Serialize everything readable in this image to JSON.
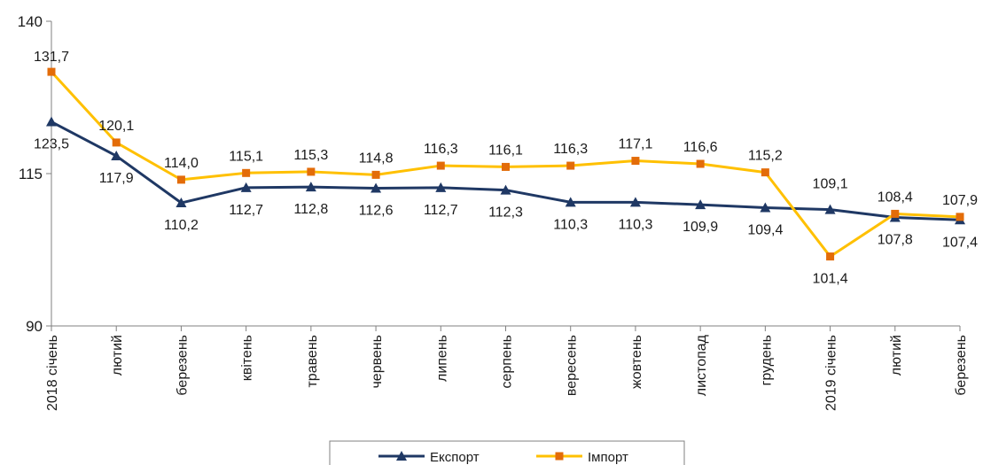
{
  "chart_data": {
    "type": "line",
    "categories": [
      "2018 січень",
      "лютий",
      "березень",
      "квітень",
      "травень",
      "червень",
      "липень",
      "серпень",
      "вересень",
      "жовтень",
      "листопад",
      "грудень",
      "2019 січень",
      "лютий",
      "березень"
    ],
    "series": [
      {
        "name": "Експорт",
        "color": "#1f3864",
        "marker": "triangle",
        "values": [
          123.5,
          117.9,
          110.2,
          112.7,
          112.8,
          112.6,
          112.7,
          112.3,
          110.3,
          110.3,
          109.9,
          109.4,
          109.1,
          107.8,
          107.4
        ],
        "labels": [
          "123,5",
          "117,9",
          "110,2",
          "112,7",
          "112,8",
          "112,6",
          "112,7",
          "112,3",
          "110,3",
          "110,3",
          "109,9",
          "109,4",
          "109,1",
          "107,8",
          "107,4"
        ]
      },
      {
        "name": "Імпорт",
        "color": "#ffc000",
        "marker_color": "#e36c09",
        "marker": "square",
        "values": [
          131.7,
          120.1,
          114.0,
          115.1,
          115.3,
          114.8,
          116.3,
          116.1,
          116.3,
          117.1,
          116.6,
          115.2,
          101.4,
          108.4,
          107.9
        ],
        "labels": [
          "131,7",
          "120,1",
          "114,0",
          "115,1",
          "115,3",
          "114,8",
          "116,3",
          "116,1",
          "116,3",
          "117,1",
          "116,6",
          "115,2",
          "101,4",
          "108,4",
          "107,9"
        ]
      }
    ],
    "ylim": [
      90,
      140
    ],
    "yticks": [
      90,
      115,
      140
    ],
    "ytick_labels": [
      "90",
      "115",
      "140"
    ],
    "grid": false,
    "legend": "bottom"
  }
}
